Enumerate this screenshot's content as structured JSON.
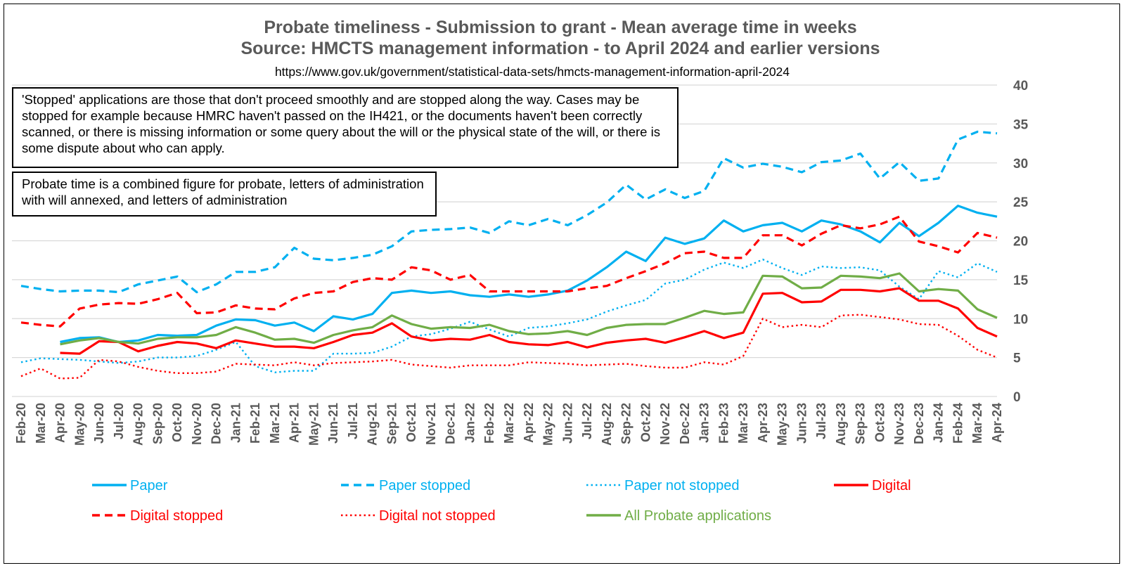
{
  "chart_data": {
    "type": "line",
    "title": "Probate timeliness - Submission to grant - Mean average time in weeks",
    "subtitle": "Source: HMCTS management information - to April 2024 and earlier versions",
    "url": "https://www.gov.uk/government/statistical-data-sets/hmcts-management-information-april-2024",
    "xlabel": "",
    "ylabel": "",
    "ylim": [
      0,
      40
    ],
    "yticks": [
      0,
      5,
      10,
      15,
      20,
      25,
      30,
      35,
      40
    ],
    "y_axis_side": "right",
    "grid": true,
    "legend_position": "bottom",
    "annotations": [
      "'Stopped' applications are those that don't proceed smoothly and are stopped along the way. Cases may be stopped for example because HMRC haven't passed on the IH421, or the documents haven't been correctly scanned, or there is missing information or some query about the will or the physical state of the will, or there is some dispute about who can apply.",
      "Probate time is a combined figure for probate, letters of administration with will annexed, and letters of administration"
    ],
    "categories": [
      "Feb-20",
      "Mar-20",
      "Apr-20",
      "May-20",
      "Jun-20",
      "Jul-20",
      "Aug-20",
      "Sep-20",
      "Oct-20",
      "Nov-20",
      "Dec-20",
      "Jan-21",
      "Feb-21",
      "Mar-21",
      "Apr-21",
      "May-21",
      "Jun-21",
      "Jul-21",
      "Aug-21",
      "Sep-21",
      "Oct-21",
      "Nov-21",
      "Dec-21",
      "Jan-22",
      "Feb-22",
      "Mar-22",
      "Apr-22",
      "May-22",
      "Jun-22",
      "Jul-22",
      "Aug-22",
      "Sep-22",
      "Oct-22",
      "Nov-22",
      "Dec-22",
      "Jan-23",
      "Feb-23",
      "Mar-23",
      "Apr-23",
      "May-23",
      "Jun-23",
      "Jul-23",
      "Aug-23",
      "Sep-23",
      "Oct-23",
      "Nov-23",
      "Dec-23",
      "Jan-24",
      "Feb-24",
      "Mar-24",
      "Apr-24"
    ],
    "series": [
      {
        "name": "Paper",
        "color": "#00B0F0",
        "dash": "solid",
        "values": [
          null,
          null,
          7.0,
          7.5,
          7.6,
          7.0,
          7.2,
          7.9,
          7.8,
          7.9,
          9.1,
          9.9,
          9.8,
          9.1,
          9.5,
          8.4,
          10.3,
          9.9,
          10.6,
          13.3,
          13.6,
          13.3,
          13.5,
          13.0,
          12.8,
          13.1,
          12.8,
          13.1,
          13.6,
          14.9,
          16.6,
          18.6,
          17.4,
          20.4,
          19.6,
          20.3,
          22.6,
          21.2,
          22.0,
          22.3,
          21.2,
          22.6,
          22.1,
          21.2,
          19.8,
          22.3,
          20.6,
          22.3,
          24.5,
          23.6,
          23.1
        ]
      },
      {
        "name": "Paper stopped",
        "color": "#00B0F0",
        "dash": "dashed",
        "values": [
          14.2,
          13.8,
          13.5,
          13.6,
          13.6,
          13.4,
          14.4,
          14.9,
          15.4,
          13.4,
          14.4,
          16.0,
          16.0,
          16.6,
          19.1,
          17.7,
          17.5,
          17.8,
          18.2,
          19.3,
          21.2,
          21.4,
          21.5,
          21.7,
          21.0,
          22.5,
          22.0,
          22.8,
          22.0,
          23.3,
          24.9,
          27.2,
          25.3,
          26.6,
          25.5,
          26.4,
          30.6,
          29.4,
          29.9,
          29.5,
          28.8,
          30.1,
          30.3,
          31.2,
          28.0,
          30.1,
          27.7,
          28.0,
          33.0,
          34.0,
          33.8
        ]
      },
      {
        "name": "Paper not stopped",
        "color": "#00B0F0",
        "dash": "dotted",
        "values": [
          4.4,
          4.9,
          4.8,
          4.7,
          4.5,
          4.3,
          4.5,
          5.0,
          5.0,
          5.2,
          6.0,
          7.0,
          3.9,
          3.1,
          3.3,
          3.3,
          5.5,
          5.5,
          5.6,
          6.4,
          7.7,
          8.0,
          8.7,
          9.6,
          8.6,
          7.7,
          8.8,
          9.0,
          9.4,
          9.9,
          10.9,
          11.7,
          12.4,
          14.5,
          15.0,
          16.3,
          17.2,
          16.5,
          17.6,
          16.5,
          15.6,
          16.7,
          16.5,
          16.6,
          16.2,
          14.1,
          12.5,
          16.1,
          15.3,
          17.1,
          16.0
        ]
      },
      {
        "name": "Digital",
        "color": "#FF0000",
        "dash": "solid",
        "values": [
          null,
          null,
          5.6,
          5.5,
          7.1,
          7.0,
          5.8,
          6.5,
          7.0,
          6.8,
          6.2,
          7.2,
          6.8,
          6.4,
          6.4,
          6.2,
          7.0,
          7.9,
          8.2,
          9.4,
          7.7,
          7.2,
          7.4,
          7.3,
          7.9,
          7.0,
          6.7,
          6.6,
          7.0,
          6.3,
          6.9,
          7.2,
          7.4,
          6.9,
          7.6,
          8.4,
          7.5,
          8.2,
          13.2,
          13.3,
          12.1,
          12.2,
          13.7,
          13.7,
          13.5,
          13.9,
          12.3,
          12.3,
          11.3,
          8.8,
          7.7
        ]
      },
      {
        "name": "Digital stopped",
        "color": "#FF0000",
        "dash": "dashed",
        "values": [
          9.5,
          9.2,
          9.0,
          11.3,
          11.8,
          12.0,
          11.9,
          12.5,
          13.3,
          10.7,
          10.8,
          11.7,
          11.3,
          11.2,
          12.6,
          13.3,
          13.5,
          14.7,
          15.2,
          15.0,
          16.6,
          16.2,
          15.0,
          15.6,
          13.5,
          13.5,
          13.5,
          13.5,
          13.5,
          13.9,
          14.2,
          15.2,
          16.1,
          17.1,
          18.4,
          18.6,
          17.8,
          17.8,
          20.7,
          20.7,
          19.4,
          20.9,
          22.0,
          21.6,
          22.1,
          23.1,
          19.9,
          19.3,
          18.5,
          21.0,
          20.4
        ]
      },
      {
        "name": "Digital not stopped",
        "color": "#FF0000",
        "dash": "dotted",
        "values": [
          2.6,
          3.6,
          2.3,
          2.4,
          4.7,
          4.5,
          3.8,
          3.3,
          3.0,
          3.0,
          3.2,
          4.2,
          4.1,
          4.0,
          4.4,
          4.0,
          4.3,
          4.4,
          4.5,
          4.7,
          4.1,
          3.9,
          3.7,
          4.0,
          4.0,
          4.0,
          4.4,
          4.3,
          4.2,
          4.0,
          4.1,
          4.2,
          3.9,
          3.7,
          3.7,
          4.4,
          4.1,
          5.2,
          10.0,
          8.9,
          9.2,
          8.9,
          10.4,
          10.5,
          10.2,
          9.9,
          9.3,
          9.2,
          7.8,
          6.0,
          5.0
        ]
      },
      {
        "name": "All Probate applications",
        "color": "#70AD47",
        "dash": "solid",
        "values": [
          null,
          null,
          6.7,
          7.2,
          7.5,
          7.0,
          6.8,
          7.4,
          7.6,
          7.6,
          7.9,
          8.9,
          8.2,
          7.3,
          7.4,
          6.9,
          7.9,
          8.5,
          8.9,
          10.4,
          9.3,
          8.7,
          8.9,
          8.8,
          9.2,
          8.4,
          8.0,
          8.1,
          8.4,
          7.9,
          8.8,
          9.2,
          9.3,
          9.3,
          10.1,
          11.0,
          10.6,
          10.8,
          15.5,
          15.4,
          13.9,
          14.0,
          15.5,
          15.4,
          15.2,
          15.8,
          13.5,
          13.8,
          13.6,
          11.2,
          10.1
        ]
      }
    ]
  }
}
